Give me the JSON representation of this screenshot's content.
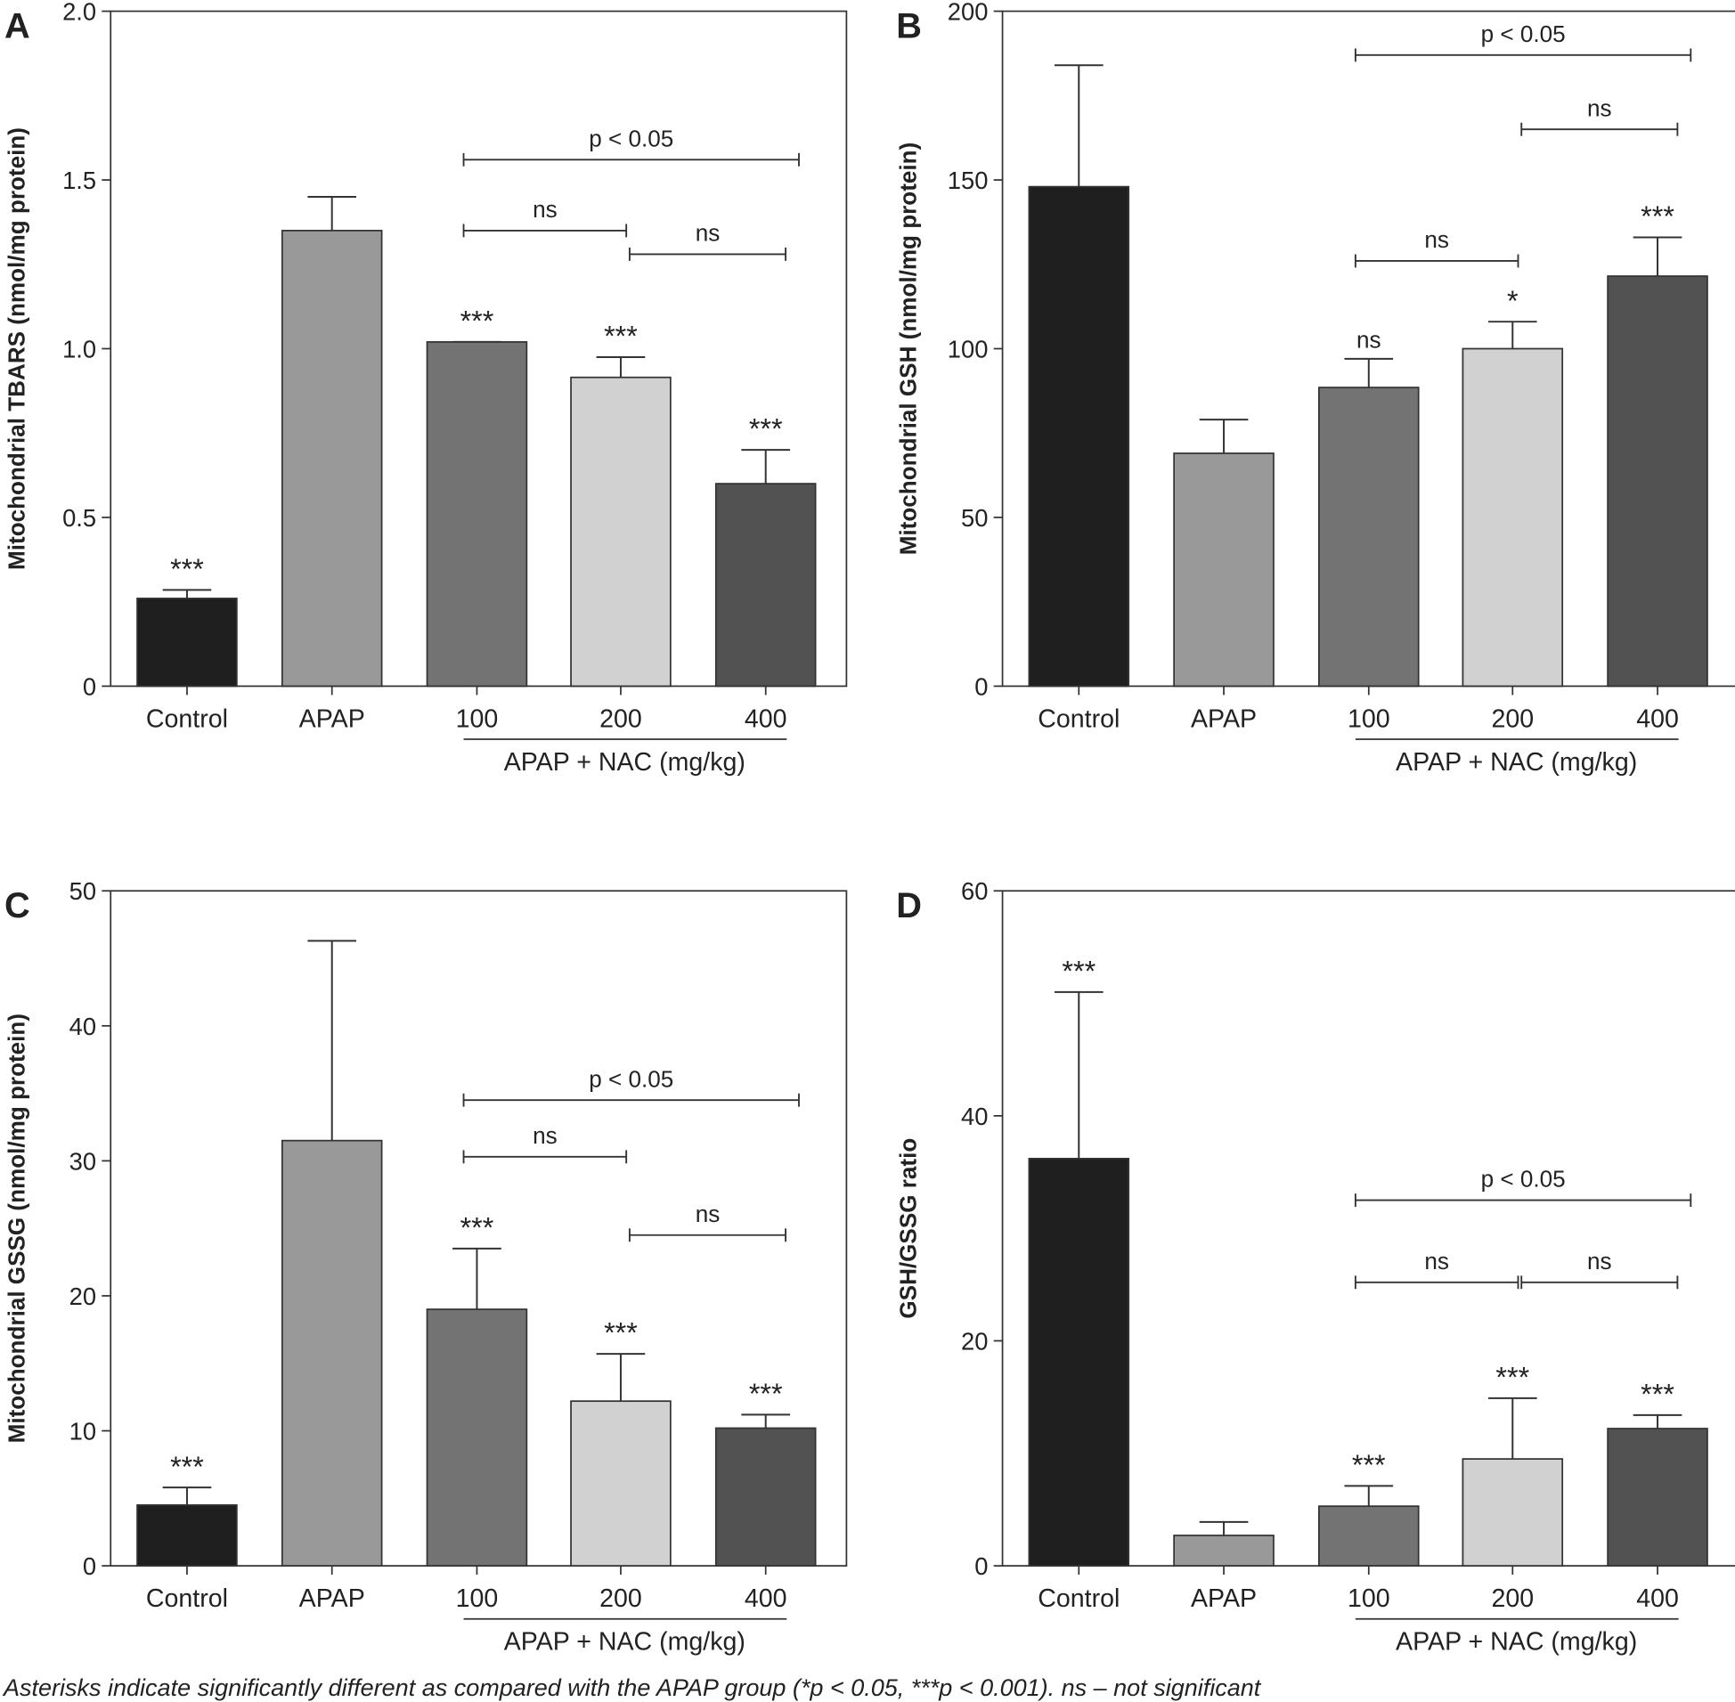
{
  "caption": "Asterisks indicate significantly different as compared with the APAP group (*p < 0.05, ***p < 0.001). ns – not significant",
  "colors": {
    "Control": "#1f1f1f",
    "APAP": "#999999",
    "100": "#737373",
    "200": "#d1d1d1",
    "400": "#525252"
  },
  "chart_data": [
    {
      "type": "bar",
      "panel": "A",
      "title": "",
      "ylabel": "Mitochondrial TBARS (nmol/mg protein)",
      "xlabel": "",
      "group_label": "APAP + NAC (mg/kg)",
      "categories": [
        "Control",
        "APAP",
        "100",
        "200",
        "400"
      ],
      "ylim": [
        0,
        2.0
      ],
      "yticks": [
        "0",
        "0.5",
        "1.0",
        "1.5",
        "2.0"
      ],
      "ytick_values": [
        0,
        0.5,
        1.0,
        1.5,
        2.0
      ],
      "values": [
        0.26,
        1.35,
        1.02,
        0.915,
        0.6
      ],
      "errors": [
        0.025,
        0.1,
        0.0,
        0.06,
        0.1
      ],
      "significance": [
        "***",
        "",
        "***",
        "***",
        "***"
      ],
      "comparisons": [
        {
          "from": 2,
          "to": 4,
          "y": 1.56,
          "label": "p < 0.05"
        },
        {
          "from": 2,
          "to": 3,
          "y": 1.35,
          "label": "ns"
        },
        {
          "from": 3,
          "to": 4,
          "y": 1.28,
          "label": "ns"
        }
      ]
    },
    {
      "type": "bar",
      "panel": "B",
      "title": "",
      "ylabel": "Mitochondrial GSH (nmol/mg protein)",
      "xlabel": "",
      "group_label": "APAP + NAC (mg/kg)",
      "categories": [
        "Control",
        "APAP",
        "100",
        "200",
        "400"
      ],
      "ylim": [
        0,
        200
      ],
      "yticks": [
        "0",
        "50",
        "100",
        "150",
        "200"
      ],
      "ytick_values": [
        0,
        50,
        100,
        150,
        200
      ],
      "values": [
        148,
        69,
        88.5,
        100,
        121.5
      ],
      "errors": [
        36,
        10,
        8.5,
        8,
        11.5
      ],
      "significance": [
        "",
        "",
        "ns",
        "*",
        "***"
      ],
      "comparisons": [
        {
          "from": 2,
          "to": 4,
          "y": 187,
          "label": "p < 0.05"
        },
        {
          "from": 3,
          "to": 4,
          "y": 165,
          "label": "ns"
        },
        {
          "from": 2,
          "to": 3,
          "y": 126,
          "label": "ns"
        }
      ]
    },
    {
      "type": "bar",
      "panel": "C",
      "title": "",
      "ylabel": "Mitochondrial GSSG (nmol/mg protein)",
      "xlabel": "",
      "group_label": "APAP + NAC (mg/kg)",
      "categories": [
        "Control",
        "APAP",
        "100",
        "200",
        "400"
      ],
      "ylim": [
        0,
        50
      ],
      "yticks": [
        "0",
        "10",
        "20",
        "30",
        "40",
        "50"
      ],
      "ytick_values": [
        0,
        10,
        20,
        30,
        40,
        50
      ],
      "values": [
        4.5,
        31.5,
        19,
        12.2,
        10.2
      ],
      "errors": [
        1.3,
        14.8,
        4.5,
        3.5,
        1.0
      ],
      "significance": [
        "***",
        "",
        "***",
        "***",
        "***"
      ],
      "comparisons": [
        {
          "from": 2,
          "to": 4,
          "y": 34.5,
          "label": "p < 0.05"
        },
        {
          "from": 2,
          "to": 3,
          "y": 30.3,
          "label": "ns"
        },
        {
          "from": 3,
          "to": 4,
          "y": 24.5,
          "label": "ns"
        }
      ]
    },
    {
      "type": "bar",
      "panel": "D",
      "title": "",
      "ylabel": "GSH/GSSG ratio",
      "xlabel": "",
      "group_label": "APAP + NAC (mg/kg)",
      "categories": [
        "Control",
        "APAP",
        "100",
        "200",
        "400"
      ],
      "ylim": [
        0,
        60
      ],
      "yticks": [
        "0",
        "20",
        "40",
        "60"
      ],
      "ytick_values": [
        0,
        20,
        40,
        60
      ],
      "values": [
        36.2,
        2.7,
        5.3,
        9.5,
        12.2
      ],
      "errors": [
        14.8,
        1.2,
        1.8,
        5.4,
        1.2
      ],
      "significance": [
        "***",
        "",
        "***",
        "***",
        "***"
      ],
      "comparisons": [
        {
          "from": 2,
          "to": 4,
          "y": 32.5,
          "label": "p < 0.05"
        },
        {
          "from": 2,
          "to": 3,
          "y": 25.2,
          "label": "ns"
        },
        {
          "from": 3,
          "to": 4,
          "y": 25.2,
          "label": "ns"
        }
      ]
    }
  ]
}
